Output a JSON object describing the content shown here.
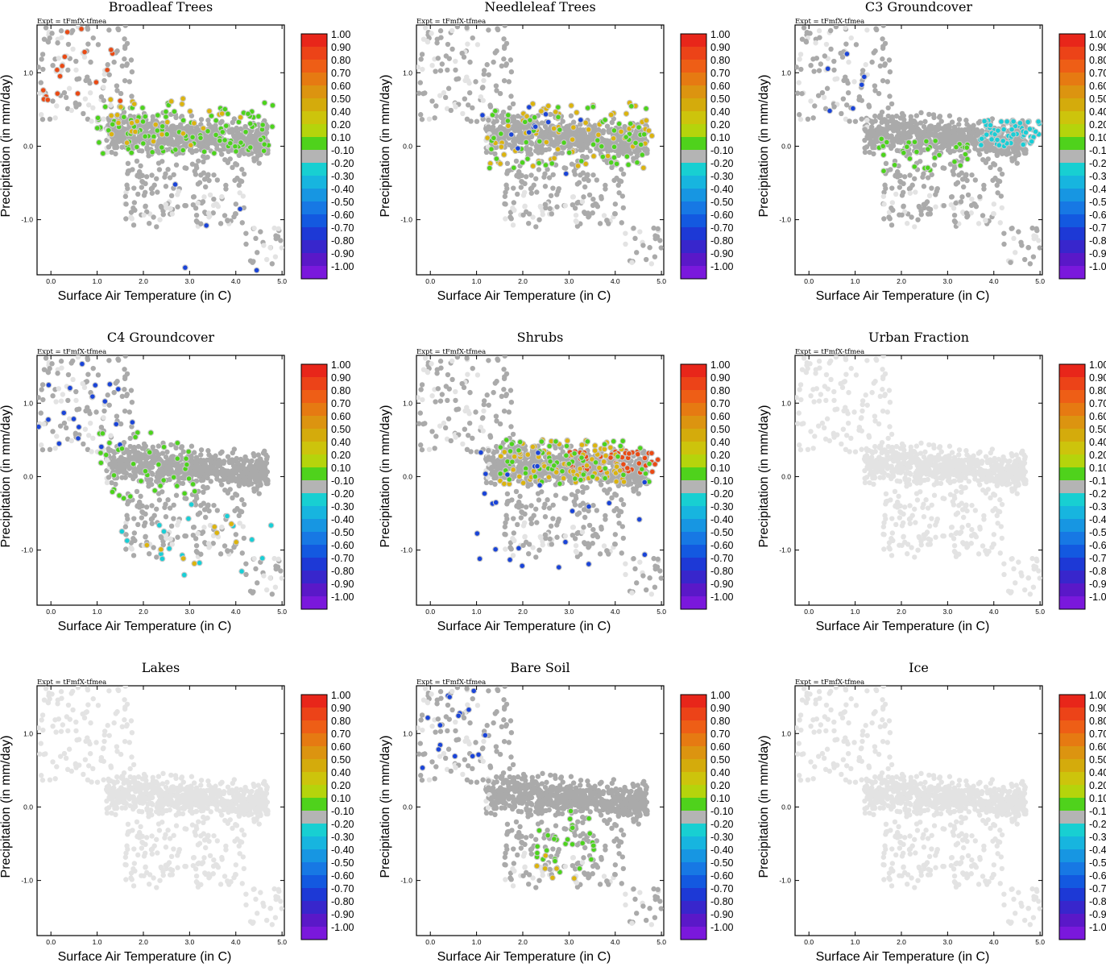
{
  "figure": {
    "expt_label": "Expt = tFmfX-tfmea",
    "xlabel": "Surface Air Temperature (in C)",
    "ylabel": "Precipitation (in mm/day)",
    "x_ticks": [
      "0.0",
      "1.0",
      "2.0",
      "3.0",
      "4.0",
      "5.0"
    ],
    "y_ticks": [
      "1.0",
      "0.0",
      "-1.0"
    ],
    "x_tick_values": [
      0,
      1,
      2,
      3,
      4,
      5
    ],
    "y_tick_values": [
      1,
      0,
      -1
    ],
    "xlim": [
      -0.3,
      5.05
    ],
    "ylim": [
      -1.75,
      1.65
    ],
    "colorbar": {
      "labels": [
        "1.00",
        "0.90",
        "0.80",
        "0.70",
        "0.60",
        "0.50",
        "0.40",
        "0.20",
        "0.10",
        "-0.10",
        "-0.20",
        "-0.30",
        "-0.40",
        "-0.50",
        "-0.60",
        "-0.70",
        "-0.80",
        "-0.90",
        "-1.00"
      ],
      "colors": [
        "#e8261a",
        "#ec4318",
        "#ee5e16",
        "#e67a12",
        "#dc9410",
        "#d4ab0c",
        "#cdc40c",
        "#b5d40c",
        "#4fd21c",
        "#b4b4b4",
        "#18cfd2",
        "#17b5df",
        "#1796e2",
        "#1778e4",
        "#1359e0",
        "#1d39d6",
        "#3826cc",
        "#5a18c8",
        "#7a18dc"
      ]
    },
    "point_colors": {
      "no_data": "#e3e3e3",
      "near_zero": "#aaaaaa",
      "positive_strong": "#ea4a14",
      "positive_mid": "#dcb40e",
      "positive_weak": "#4cd41c",
      "negative_weak": "#18cfd6",
      "negative_strong": "#1a44d8"
    }
  },
  "chart_data": [
    {
      "type": "scatter",
      "panel": "broadleaf",
      "title": "Broadleaf Trees",
      "xlim": [
        -0.3,
        5.05
      ],
      "ylim": [
        -1.75,
        1.65
      ],
      "colorbar_range": [
        -1.0,
        1.0
      ],
      "highlight_clusters": [
        {
          "x": [
            -0.3,
            1.6
          ],
          "y": [
            0.5,
            1.6
          ],
          "color_class": "positive_strong",
          "count": 18
        },
        {
          "x": [
            1.0,
            4.8
          ],
          "y": [
            -0.1,
            0.6
          ],
          "color_class": "positive_weak",
          "count": 110
        },
        {
          "x": [
            1.2,
            4.2
          ],
          "y": [
            0.0,
            0.7
          ],
          "color_class": "positive_mid",
          "count": 30
        },
        {
          "x": [
            2.0,
            4.8
          ],
          "y": [
            -1.8,
            -0.5
          ],
          "color_class": "negative_strong",
          "count": 5
        }
      ]
    },
    {
      "type": "scatter",
      "panel": "needleleaf",
      "title": "Needleleaf Trees",
      "xlim": [
        -0.3,
        5.05
      ],
      "ylim": [
        -1.75,
        1.65
      ],
      "colorbar_range": [
        -1.0,
        1.0
      ],
      "highlight_clusters": [
        {
          "x": [
            1.2,
            4.8
          ],
          "y": [
            -0.3,
            0.6
          ],
          "color_class": "positive_mid",
          "count": 70
        },
        {
          "x": [
            1.2,
            4.8
          ],
          "y": [
            -0.3,
            0.6
          ],
          "color_class": "positive_weak",
          "count": 60
        },
        {
          "x": [
            1.0,
            3.5
          ],
          "y": [
            -0.4,
            0.6
          ],
          "color_class": "negative_strong",
          "count": 12
        }
      ]
    },
    {
      "type": "scatter",
      "panel": "c3",
      "title": "C3 Groundcover",
      "xlim": [
        -0.3,
        5.05
      ],
      "ylim": [
        -1.75,
        1.65
      ],
      "colorbar_range": [
        -1.0,
        1.0
      ],
      "highlight_clusters": [
        {
          "x": [
            3.7,
            5.0
          ],
          "y": [
            0.0,
            0.35
          ],
          "color_class": "negative_weak",
          "count": 70
        },
        {
          "x": [
            1.5,
            3.5
          ],
          "y": [
            -0.35,
            0.1
          ],
          "color_class": "positive_weak",
          "count": 35
        },
        {
          "x": [
            -0.3,
            1.6
          ],
          "y": [
            0.4,
            1.3
          ],
          "color_class": "negative_strong",
          "count": 6
        }
      ]
    },
    {
      "type": "scatter",
      "panel": "c4",
      "title": "C4 Groundcover",
      "xlim": [
        -0.3,
        5.05
      ],
      "ylim": [
        -1.75,
        1.65
      ],
      "colorbar_range": [
        -1.0,
        1.0
      ],
      "highlight_clusters": [
        {
          "x": [
            -0.3,
            1.8
          ],
          "y": [
            0.4,
            1.6
          ],
          "color_class": "negative_strong",
          "count": 20
        },
        {
          "x": [
            1.0,
            3.2
          ],
          "y": [
            -0.3,
            0.6
          ],
          "color_class": "positive_weak",
          "count": 40
        },
        {
          "x": [
            1.5,
            4.8
          ],
          "y": [
            -1.4,
            -0.3
          ],
          "color_class": "negative_weak",
          "count": 18
        },
        {
          "x": [
            2.0,
            4.6
          ],
          "y": [
            -1.4,
            -0.5
          ],
          "color_class": "positive_mid",
          "count": 8
        }
      ]
    },
    {
      "type": "scatter",
      "panel": "shrubs",
      "title": "Shrubs",
      "xlim": [
        -0.3,
        5.05
      ],
      "ylim": [
        -1.75,
        1.65
      ],
      "colorbar_range": [
        -1.0,
        1.0
      ],
      "highlight_clusters": [
        {
          "x": [
            3.0,
            5.0
          ],
          "y": [
            0.05,
            0.35
          ],
          "color_class": "positive_strong",
          "count": 60
        },
        {
          "x": [
            1.5,
            4.2
          ],
          "y": [
            -0.1,
            0.5
          ],
          "color_class": "positive_mid",
          "count": 90
        },
        {
          "x": [
            1.5,
            4.8
          ],
          "y": [
            -0.1,
            0.5
          ],
          "color_class": "positive_weak",
          "count": 60
        },
        {
          "x": [
            1.0,
            4.7
          ],
          "y": [
            -1.3,
            0.4
          ],
          "color_class": "negative_strong",
          "count": 25
        }
      ]
    },
    {
      "type": "scatter",
      "panel": "urban",
      "title": "Urban Fraction",
      "xlim": [
        -0.3,
        5.05
      ],
      "ylim": [
        -1.75,
        1.65
      ],
      "colorbar_range": [
        -1.0,
        1.0
      ],
      "highlight_clusters": []
    },
    {
      "type": "scatter",
      "panel": "lakes",
      "title": "Lakes",
      "xlim": [
        -0.3,
        5.05
      ],
      "ylim": [
        -1.75,
        1.65
      ],
      "colorbar_range": [
        -1.0,
        1.0
      ],
      "highlight_clusters": []
    },
    {
      "type": "scatter",
      "panel": "baresoil",
      "title": "Bare Soil",
      "xlim": [
        -0.3,
        5.05
      ],
      "ylim": [
        -1.75,
        1.65
      ],
      "colorbar_range": [
        -1.0,
        1.0
      ],
      "highlight_clusters": [
        {
          "x": [
            -0.3,
            1.2
          ],
          "y": [
            0.4,
            1.6
          ],
          "color_class": "negative_strong",
          "count": 15
        },
        {
          "x": [
            2.3,
            3.6
          ],
          "y": [
            -0.9,
            -0.05
          ],
          "color_class": "positive_weak",
          "count": 30
        },
        {
          "x": [
            2.3,
            3.3
          ],
          "y": [
            -1.0,
            -0.55
          ],
          "color_class": "positive_mid",
          "count": 6
        }
      ]
    },
    {
      "type": "scatter",
      "panel": "ice",
      "title": "Ice",
      "xlim": [
        -0.3,
        5.05
      ],
      "ylim": [
        -1.75,
        1.65
      ],
      "colorbar_range": [
        -1.0,
        1.0
      ],
      "highlight_clusters": []
    }
  ]
}
